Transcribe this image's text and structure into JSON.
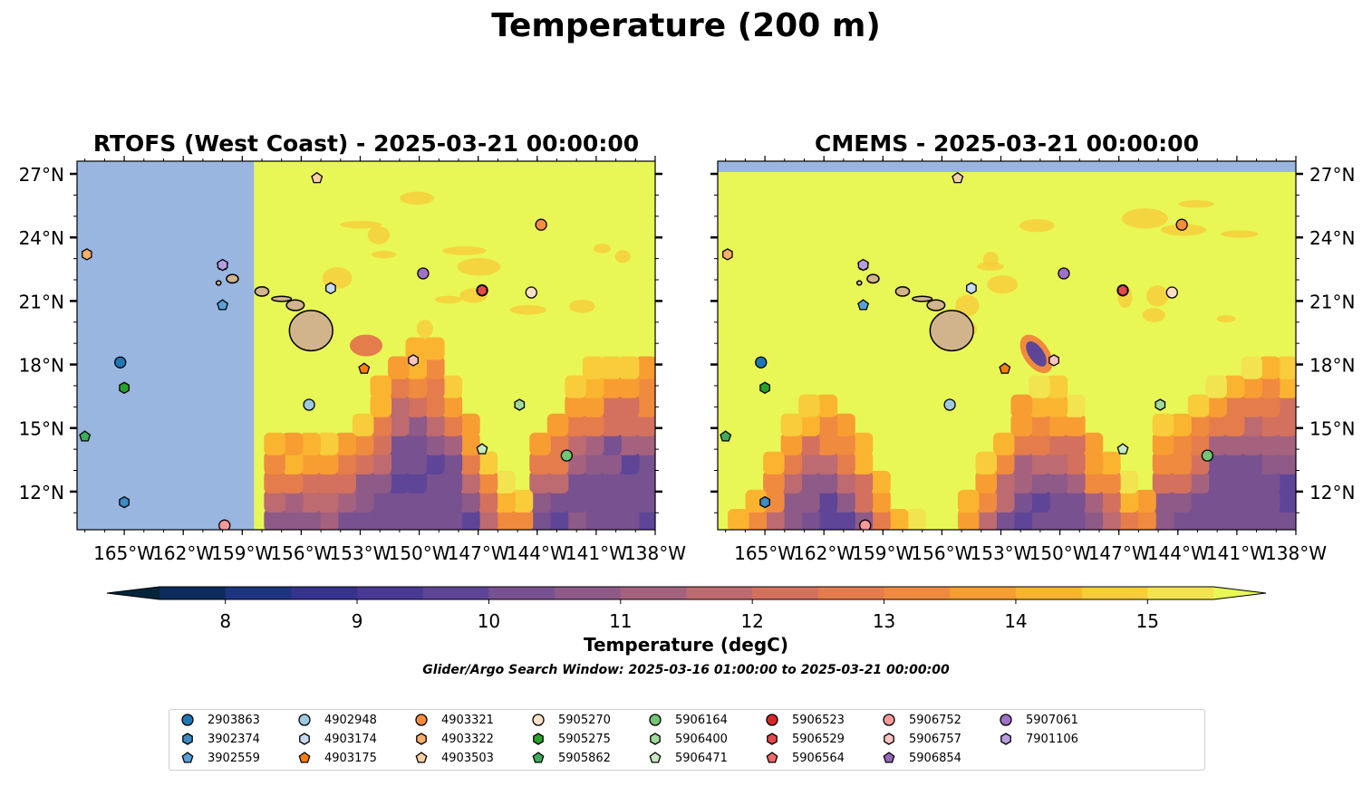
{
  "figure": {
    "title": "Temperature (200 m)",
    "search_window": "Glider/Argo Search Window: 2025-03-16 01:00:00 to 2025-03-21 00:00:00"
  },
  "colors": {
    "ocean_land_mask": "#98b6e0",
    "land": "#d2b48c",
    "warm_max": "#e8f756",
    "cmap": [
      "#02253a",
      "#0d2b5d",
      "#1d3580",
      "#36328f",
      "#4a3896",
      "#5e4597",
      "#785190",
      "#8e5a88",
      "#a5627e",
      "#bd6a70",
      "#d3715e",
      "#e57c4c",
      "#f08a3e",
      "#f89d32",
      "#fbb430",
      "#f8cc3a",
      "#f1e450",
      "#e8f756"
    ]
  },
  "chart_data": [
    {
      "type": "heatmap",
      "title": "RTOFS (West Coast) - 2025-03-21 00:00:00",
      "x_ticklabels": [
        "165°W",
        "162°W",
        "159°W",
        "156°W",
        "153°W",
        "150°W",
        "147°W",
        "144°W",
        "141°W",
        "138°W"
      ],
      "x_ticks": [
        -165,
        -162,
        -159,
        -156,
        -153,
        -150,
        -147,
        -144,
        -141,
        -138
      ],
      "y_ticklabels": [
        "27°N",
        "24°N",
        "21°N",
        "18°N",
        "15°N",
        "12°N"
      ],
      "y_ticks": [
        27,
        24,
        21,
        18,
        15,
        12
      ],
      "xlim": [
        -167.4,
        -138.0
      ],
      "ylim": [
        10.2,
        27.6
      ],
      "y_axis_side": "left"
    },
    {
      "type": "heatmap",
      "title": "CMEMS - 2025-03-21 00:00:00",
      "x_ticklabels": [
        "165°W",
        "162°W",
        "159°W",
        "156°W",
        "153°W",
        "150°W",
        "147°W",
        "144°W",
        "141°W",
        "138°W"
      ],
      "x_ticks": [
        -165,
        -162,
        -159,
        -156,
        -153,
        -150,
        -147,
        -144,
        -141,
        -138
      ],
      "y_ticklabels": [
        "27°N",
        "24°N",
        "21°N",
        "18°N",
        "15°N",
        "12°N"
      ],
      "y_ticks": [
        27,
        24,
        21,
        18,
        15,
        12
      ],
      "xlim": [
        -167.4,
        -138.0
      ],
      "ylim": [
        10.2,
        27.6
      ],
      "y_axis_side": "right"
    }
  ],
  "colorbar": {
    "label": "Temperature (degC)",
    "min": 7.5,
    "max": 15.5,
    "ticks": [
      8,
      9,
      10,
      11,
      12,
      13,
      14,
      15
    ],
    "ticklabels": [
      "8",
      "9",
      "10",
      "11",
      "12",
      "13",
      "14",
      "15"
    ]
  },
  "floats": [
    {
      "id": "2903863",
      "marker": "circle",
      "color": "#1f77b4",
      "lon": -165.2,
      "lat": 18.1
    },
    {
      "id": "3902374",
      "marker": "hexagon",
      "color": "#3f8ac0",
      "lon": -165.0,
      "lat": 11.5
    },
    {
      "id": "3902559",
      "marker": "pentagon",
      "color": "#5aa0d8",
      "lon": -160.0,
      "lat": 20.8
    },
    {
      "id": "4902948",
      "marker": "circle",
      "color": "#9ecae1",
      "lon": -155.6,
      "lat": 16.1
    },
    {
      "id": "4903174",
      "marker": "hexagon",
      "color": "#c6dbef",
      "lon": -154.5,
      "lat": 21.6
    },
    {
      "id": "4903175",
      "marker": "pentagon",
      "color": "#ff7f0e",
      "lon": -152.8,
      "lat": 17.8
    },
    {
      "id": "4903321",
      "marker": "circle",
      "color": "#fd8d3c",
      "lon": -143.8,
      "lat": 24.6
    },
    {
      "id": "4903322",
      "marker": "hexagon",
      "color": "#fdae6b",
      "lon": -166.9,
      "lat": 23.2
    },
    {
      "id": "4903503",
      "marker": "pentagon",
      "color": "#fdd0a2",
      "lon": -155.2,
      "lat": 26.8
    },
    {
      "id": "5905270",
      "marker": "circle",
      "color": "#fde0c5",
      "lon": -144.3,
      "lat": 21.4
    },
    {
      "id": "5905275",
      "marker": "hexagon",
      "color": "#2ca02c",
      "lon": -165.0,
      "lat": 16.9
    },
    {
      "id": "5905862",
      "marker": "pentagon",
      "color": "#41ab5d",
      "lon": -167.0,
      "lat": 14.6
    },
    {
      "id": "5906164",
      "marker": "circle",
      "color": "#74c476",
      "lon": -142.5,
      "lat": 13.7
    },
    {
      "id": "5906400",
      "marker": "hexagon",
      "color": "#a1d99b",
      "lon": -144.9,
      "lat": 16.1
    },
    {
      "id": "5906471",
      "marker": "pentagon",
      "color": "#c7e9c0",
      "lon": -146.8,
      "lat": 14.0
    },
    {
      "id": "5906523",
      "marker": "circle",
      "color": "#d62728",
      "lon": -146.8,
      "lat": 21.5
    },
    {
      "id": "5906529",
      "marker": "hexagon",
      "color": "#e34a4a",
      "lon": -146.8,
      "lat": 21.5
    },
    {
      "id": "5906564",
      "marker": "pentagon",
      "color": "#f16a6a",
      "lon": -159.9,
      "lat": 10.4
    },
    {
      "id": "5906752",
      "marker": "circle",
      "color": "#fc9a9a",
      "lon": -159.9,
      "lat": 10.4
    },
    {
      "id": "5906757",
      "marker": "hexagon",
      "color": "#fcc5c0",
      "lon": -150.3,
      "lat": 18.2
    },
    {
      "id": "5906854",
      "marker": "pentagon",
      "color": "#9467bd",
      "lon": -160.0,
      "lat": 22.7
    },
    {
      "id": "5907061",
      "marker": "circle",
      "color": "#9d72c6",
      "lon": -149.8,
      "lat": 22.3
    },
    {
      "id": "7901106",
      "marker": "hexagon",
      "color": "#b99de0",
      "lon": -160.0,
      "lat": 22.7
    }
  ],
  "legend": {
    "entries": [
      {
        "label": "2903863",
        "marker": "circle",
        "color": "#1f77b4"
      },
      {
        "label": "3902374",
        "marker": "hexagon",
        "color": "#3f8ac0"
      },
      {
        "label": "3902559",
        "marker": "pentagon",
        "color": "#5aa0d8"
      },
      {
        "label": "4902948",
        "marker": "circle",
        "color": "#9ecae1"
      },
      {
        "label": "4903174",
        "marker": "hexagon",
        "color": "#c6dbef"
      },
      {
        "label": "4903175",
        "marker": "pentagon",
        "color": "#ff7f0e"
      },
      {
        "label": "4903321",
        "marker": "circle",
        "color": "#fd8d3c"
      },
      {
        "label": "4903322",
        "marker": "hexagon",
        "color": "#fdae6b"
      },
      {
        "label": "4903503",
        "marker": "pentagon",
        "color": "#fdd0a2"
      },
      {
        "label": "5905270",
        "marker": "circle",
        "color": "#fde0c5"
      },
      {
        "label": "5905275",
        "marker": "hexagon",
        "color": "#2ca02c"
      },
      {
        "label": "5905862",
        "marker": "pentagon",
        "color": "#41ab5d"
      },
      {
        "label": "5906164",
        "marker": "circle",
        "color": "#74c476"
      },
      {
        "label": "5906400",
        "marker": "hexagon",
        "color": "#a1d99b"
      },
      {
        "label": "5906471",
        "marker": "pentagon",
        "color": "#c7e9c0"
      },
      {
        "label": "5906523",
        "marker": "circle",
        "color": "#d62728"
      },
      {
        "label": "5906529",
        "marker": "hexagon",
        "color": "#e34a4a"
      },
      {
        "label": "5906564",
        "marker": "pentagon",
        "color": "#f16a6a"
      },
      {
        "label": "5906752",
        "marker": "circle",
        "color": "#fc9a9a"
      },
      {
        "label": "5906757",
        "marker": "hexagon",
        "color": "#fcc5c0"
      },
      {
        "label": "5906854",
        "marker": "pentagon",
        "color": "#9467bd"
      },
      {
        "label": "5907061",
        "marker": "circle",
        "color": "#9d72c6"
      },
      {
        "label": "7901106",
        "marker": "hexagon",
        "color": "#b99de0"
      }
    ]
  }
}
